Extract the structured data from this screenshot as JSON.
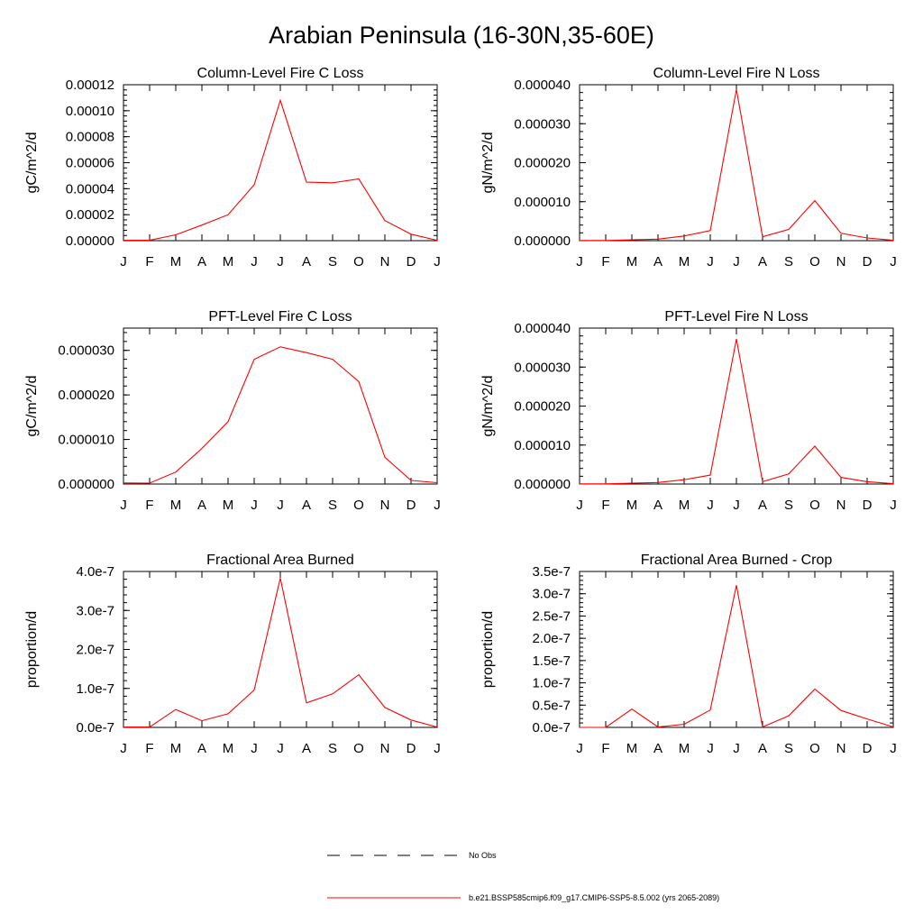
{
  "figure": {
    "title": "Arabian Peninsula (16-30N,35-60E)"
  },
  "legend": {
    "items": [
      {
        "label": "No Obs",
        "style": "dashed",
        "color": "#000000"
      },
      {
        "label": "b.e21.BSSP585cmip6.f09_g17.CMIP6-SSP5-8.5.002 (yrs 2065-2089)",
        "style": "solid",
        "color": "#ff0000"
      }
    ]
  },
  "colors": {
    "series": "#ff0000",
    "axis": "#000000"
  },
  "chart_data": [
    {
      "type": "line",
      "title": "Column-Level Fire C Loss",
      "ylabel": "gC/m^2/d",
      "categories": [
        "J",
        "F",
        "M",
        "A",
        "M",
        "J",
        "J",
        "A",
        "S",
        "O",
        "N",
        "D",
        "J"
      ],
      "ylim": [
        0,
        0.00012
      ],
      "yticks": [
        0,
        2e-05,
        4e-05,
        6e-05,
        8e-05,
        0.0001,
        0.00012
      ],
      "ytick_labels": [
        "0.00000",
        "0.00002",
        "0.00004",
        "0.00006",
        "0.00008",
        "0.00010",
        "0.00012"
      ],
      "series": [
        {
          "values": [
            3e-07,
            3e-07,
            4.5e-06,
            1.2e-05,
            2e-05,
            4.3e-05,
            0.000108,
            4.5e-05,
            4.45e-05,
            4.75e-05,
            1.55e-05,
            5e-06,
            3e-07
          ]
        }
      ]
    },
    {
      "type": "line",
      "title": "Column-Level Fire N Loss",
      "ylabel": "gN/m^2/d",
      "categories": [
        "J",
        "F",
        "M",
        "A",
        "M",
        "J",
        "J",
        "A",
        "S",
        "O",
        "N",
        "D",
        "J"
      ],
      "ylim": [
        0,
        4e-05
      ],
      "yticks": [
        0,
        1e-05,
        2e-05,
        3e-05,
        4e-05
      ],
      "ytick_labels": [
        "0.000000",
        "0.000010",
        "0.000020",
        "0.000030",
        "0.000040"
      ],
      "series": [
        {
          "values": [
            5e-08,
            5e-08,
            2e-07,
            4e-07,
            1.2e-06,
            2.6e-06,
            3.88e-05,
            1e-06,
            2.9e-06,
            1.03e-05,
            1.9e-06,
            7e-07,
            1e-07
          ]
        }
      ]
    },
    {
      "type": "line",
      "title": "PFT-Level Fire C Loss",
      "ylabel": "gC/m^2/d",
      "categories": [
        "J",
        "F",
        "M",
        "A",
        "M",
        "J",
        "J",
        "A",
        "S",
        "O",
        "N",
        "D",
        "J"
      ],
      "ylim": [
        0,
        3.5e-05
      ],
      "yticks": [
        0,
        1e-05,
        2e-05,
        3e-05
      ],
      "ytick_labels": [
        "0.000000",
        "0.000010",
        "0.000020",
        "0.000030"
      ],
      "series": [
        {
          "values": [
            2.5e-07,
            2e-07,
            2.7e-06,
            8e-06,
            1.4e-05,
            2.8e-05,
            3.08e-05,
            2.95e-05,
            2.8e-05,
            2.3e-05,
            6e-06,
            8e-07,
            3e-07
          ]
        }
      ]
    },
    {
      "type": "line",
      "title": "PFT-Level Fire N Loss",
      "ylabel": "gN/m^2/d",
      "categories": [
        "J",
        "F",
        "M",
        "A",
        "M",
        "J",
        "J",
        "A",
        "S",
        "O",
        "N",
        "D",
        "J"
      ],
      "ylim": [
        0,
        4e-05
      ],
      "yticks": [
        0,
        1e-05,
        2e-05,
        3e-05,
        4e-05
      ],
      "ytick_labels": [
        "0.000000",
        "0.000010",
        "0.000020",
        "0.000030",
        "0.000040"
      ],
      "series": [
        {
          "values": [
            5e-08,
            5e-08,
            2e-07,
            4e-07,
            1.1e-06,
            2.3e-06,
            3.72e-05,
            6e-07,
            2.6e-06,
            9.7e-06,
            1.7e-06,
            6e-07,
            1e-07
          ]
        }
      ]
    },
    {
      "type": "line",
      "title": "Fractional Area Burned",
      "ylabel": "proportion/d",
      "categories": [
        "J",
        "F",
        "M",
        "A",
        "M",
        "J",
        "J",
        "A",
        "S",
        "O",
        "N",
        "D",
        "J"
      ],
      "ylim": [
        0,
        4e-07
      ],
      "yticks": [
        0,
        1e-07,
        2e-07,
        3e-07,
        4e-07
      ],
      "ytick_labels": [
        "0.0e-7",
        "1.0e-7",
        "2.0e-7",
        "3.0e-7",
        "4.0e-7"
      ],
      "series": [
        {
          "values": [
            1e-09,
            1e-09,
            4.6e-08,
            1.7e-08,
            3.5e-08,
            9.6e-08,
            3.83e-07,
            6.3e-08,
            8.6e-08,
            1.35e-07,
            5.1e-08,
            1.9e-08,
            1e-09
          ]
        }
      ]
    },
    {
      "type": "line",
      "title": "Fractional Area Burned - Crop",
      "ylabel": "proportion/d",
      "categories": [
        "J",
        "F",
        "M",
        "A",
        "M",
        "J",
        "J",
        "A",
        "S",
        "O",
        "N",
        "D",
        "J"
      ],
      "ylim": [
        0,
        3.5e-07
      ],
      "yticks": [
        0,
        5e-08,
        1e-07,
        1.5e-07,
        2e-07,
        2.5e-07,
        3e-07,
        3.5e-07
      ],
      "ytick_labels": [
        "0.0e-7",
        "0.5e-7",
        "1.0e-7",
        "1.5e-7",
        "2.0e-7",
        "2.5e-7",
        "3.0e-7",
        "3.5e-7"
      ],
      "series": [
        {
          "values": [
            0,
            0,
            4.1e-08,
            1e-09,
            7e-09,
            3.9e-08,
            3.19e-07,
            1e-09,
            2.6e-08,
            8.6e-08,
            3.8e-08,
            1.9e-08,
            1e-09
          ]
        }
      ]
    }
  ]
}
